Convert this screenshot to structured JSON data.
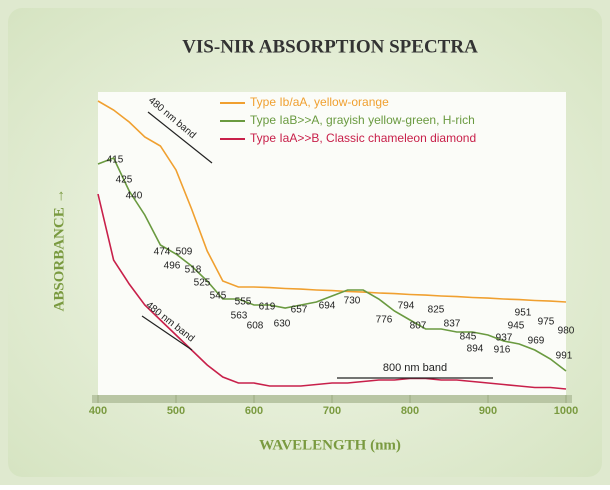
{
  "chart_data": {
    "type": "line",
    "title": "VIS-NIR ABSORPTION SPECTRA",
    "x_label": "WAVELENGTH (nm)",
    "y_label": "ABSORBANCE →",
    "x": [
      400,
      420,
      440,
      460,
      480,
      500,
      520,
      540,
      560,
      580,
      600,
      620,
      640,
      660,
      680,
      700,
      720,
      740,
      760,
      780,
      800,
      820,
      840,
      860,
      880,
      900,
      920,
      940,
      960,
      980,
      1000
    ],
    "series": [
      {
        "name": "Type Ib/aA, yellow-orange",
        "color": "#f0a030",
        "values": [
          98,
          95,
          91,
          86,
          83,
          75,
          62,
          48,
          38,
          36,
          36,
          35.8,
          35.5,
          35.3,
          35,
          34.8,
          34.5,
          34.3,
          34,
          33.8,
          33.5,
          33.3,
          33,
          32.8,
          32.5,
          32.3,
          32,
          31.8,
          31.5,
          31.3,
          31
        ]
      },
      {
        "name": "Type IaB>>A, grayish yellow-green, H-rich",
        "color": "#6a9a40",
        "values": [
          77,
          79,
          68,
          60,
          50,
          47,
          43,
          38,
          32,
          32,
          30,
          30,
          29,
          30,
          31,
          33,
          35,
          35,
          32,
          28,
          25,
          22,
          22,
          21,
          21,
          20,
          18,
          17,
          15,
          12,
          8
        ]
      },
      {
        "name": "Type IaA>>B, Classic chameleon diamond",
        "color": "#c8204a",
        "values": [
          67,
          45,
          37,
          30,
          25,
          20,
          15,
          10,
          6,
          4,
          4,
          3,
          3,
          3,
          3.5,
          4,
          4,
          4.5,
          5,
          5,
          5.5,
          5.5,
          5,
          5,
          4.5,
          4,
          3.5,
          3,
          2.5,
          2.5,
          2
        ]
      }
    ],
    "xlim": [
      400,
      1000
    ],
    "xticks": [
      400,
      500,
      600,
      700,
      800,
      900,
      1000
    ],
    "ylim": [
      0,
      100
    ],
    "peak_labels": [
      "415",
      "425",
      "440",
      "474",
      "496",
      "509",
      "518",
      "525",
      "545",
      "555",
      "563",
      "608",
      "619",
      "630",
      "657",
      "694",
      "730",
      "776",
      "794",
      "807",
      "825",
      "837",
      "845",
      "894",
      "916",
      "937",
      "945",
      "951",
      "969",
      "975",
      "980",
      "991"
    ],
    "band_labels": [
      "480 nm band",
      "480 nm band",
      "800 nm band"
    ]
  }
}
